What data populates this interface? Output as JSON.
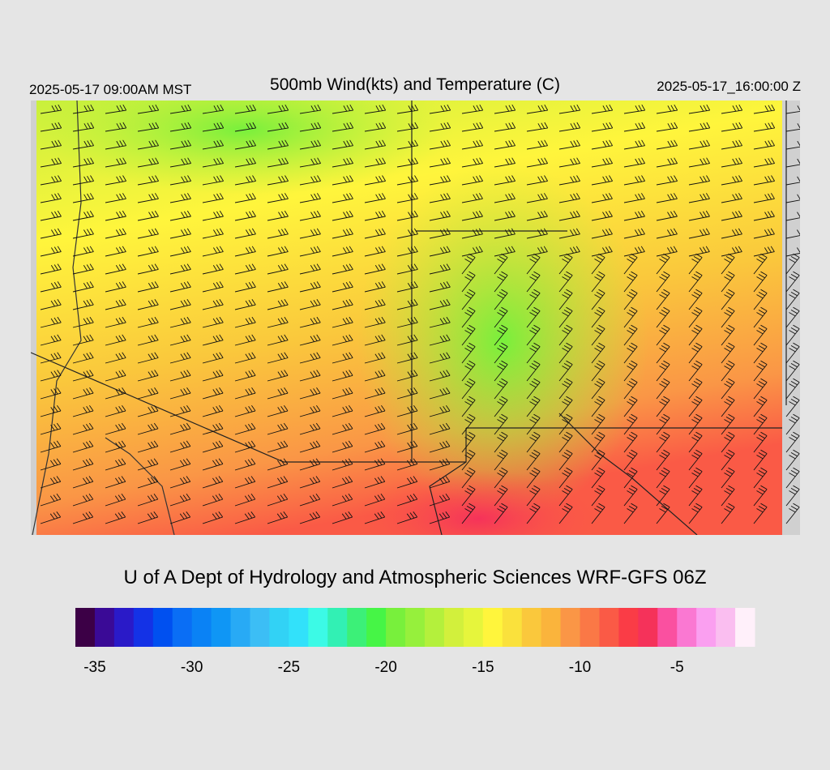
{
  "header": {
    "title": "500mb Wind(kts) and Temperature (C)",
    "local_time": "2025-05-17 09:00AM MST",
    "valid_time": "2025-05-17_16:00:00 Z"
  },
  "credit": "U of A Dept of Hydrology and Atmospheric Sciences WRF-GFS 06Z",
  "colorbar": {
    "vlim": [
      -36,
      -1
    ],
    "ticks": [
      -35,
      -30,
      -25,
      -20,
      -15,
      -10,
      -5
    ],
    "colors": [
      "#3c0046",
      "#3a0a96",
      "#2a1ac8",
      "#1432e6",
      "#0050f0",
      "#0a6ef5",
      "#0a82f5",
      "#0f96f5",
      "#28aaf5",
      "#3cbef5",
      "#32d2f5",
      "#32e1fa",
      "#3cfae6",
      "#32f0b4",
      "#3cf078",
      "#46f546",
      "#78f03c",
      "#96f03c",
      "#b4f03c",
      "#d2f03c",
      "#e6f53c",
      "#fff53c",
      "#fae13c",
      "#fac83c",
      "#fab43c",
      "#fa9646",
      "#fa7846",
      "#fa5a46",
      "#fa3c46",
      "#f5325a",
      "#fa50a0",
      "#fa78d2",
      "#fa9ff0",
      "#fabef0",
      "#fff0fa"
    ]
  }
}
